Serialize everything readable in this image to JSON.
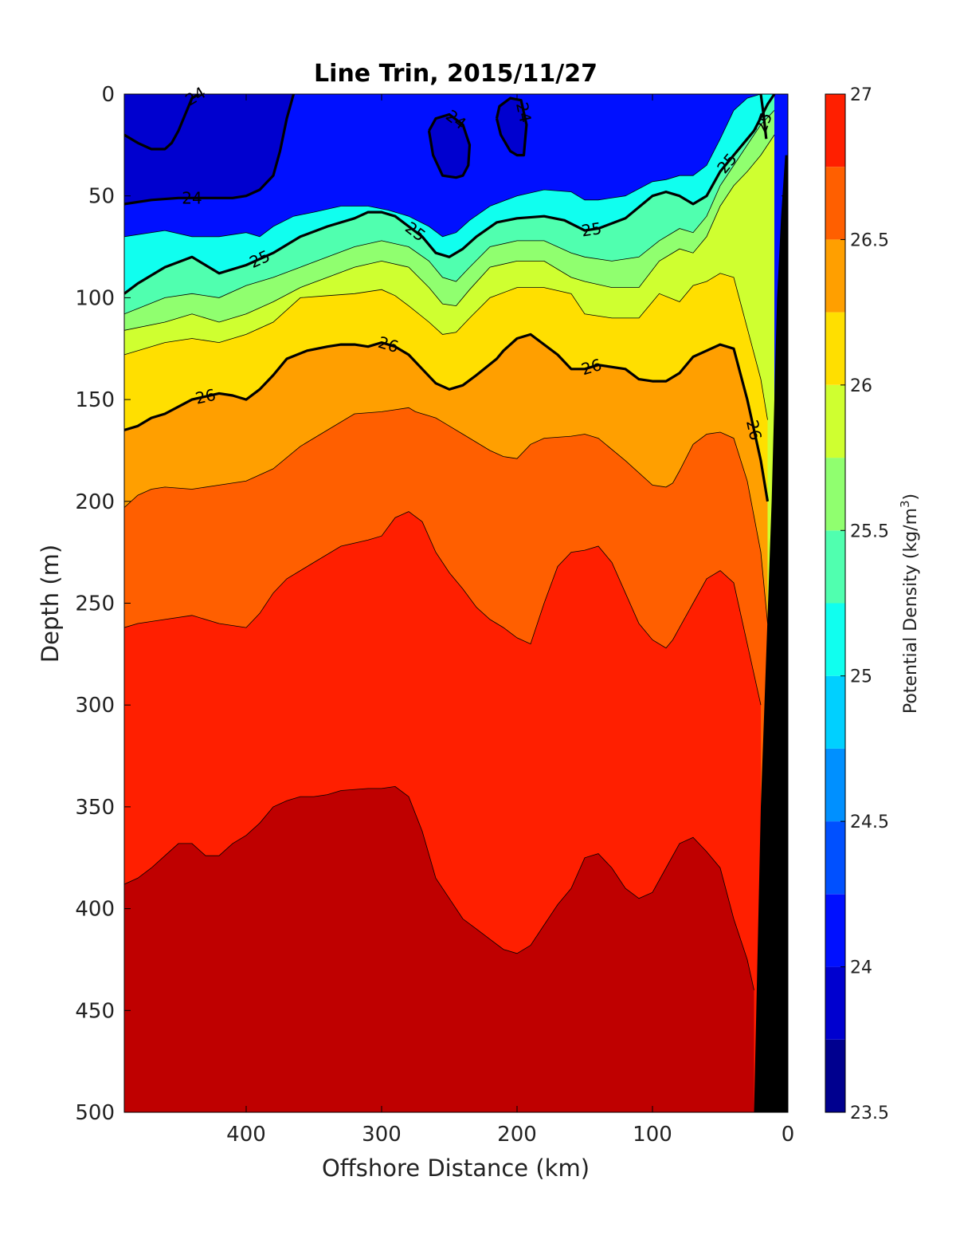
{
  "chart_data": {
    "type": "heatmap",
    "subtype": "filled-contour",
    "title": "Line Trin, 2015/11/27",
    "xlabel": "Offshore Distance (km)",
    "ylabel": "Depth (m)",
    "xlim": [
      490,
      0
    ],
    "ylim": [
      0,
      500
    ],
    "x_reversed": true,
    "y_reversed": true,
    "xticks": [
      400,
      300,
      200,
      100,
      0
    ],
    "yticks": [
      0,
      50,
      100,
      150,
      200,
      250,
      300,
      350,
      400,
      450,
      500
    ],
    "colorbar": {
      "label": "Potential Density (kg/m",
      "label_superscript": "3",
      "label_suffix": ")",
      "range": [
        23.5,
        27
      ],
      "levels": [
        23.5,
        23.75,
        24,
        24.25,
        24.5,
        24.75,
        25,
        25.25,
        25.5,
        25.75,
        26,
        26.25,
        26.5,
        26.75,
        27
      ],
      "ticks": [
        23.5,
        24,
        24.5,
        25,
        25.5,
        26,
        26.5,
        27
      ],
      "tick_labels": [
        "23.5",
        "24",
        "24.5",
        "25",
        "25.5",
        "26",
        "26.5",
        "27"
      ],
      "colors": [
        "#00008f",
        "#0000cf",
        "#0010ff",
        "#0050ff",
        "#0090ff",
        "#00d0ff",
        "#10ffef",
        "#50ffaf",
        "#90ff6f",
        "#cfff30",
        "#ffdf00",
        "#ff9f00",
        "#ff5f00",
        "#ff1f00",
        "#bf0000"
      ]
    },
    "bottom_mask_color": "#000000",
    "isolines": [
      {
        "level": 24.75,
        "x": [
          490,
          460,
          440,
          420,
          400,
          390,
          380,
          365,
          350,
          330,
          310,
          295,
          280,
          265,
          255,
          245,
          235,
          220,
          200,
          180,
          160,
          150,
          140,
          120,
          100,
          90,
          80,
          70,
          60,
          50,
          40,
          30,
          20,
          10
        ],
        "y": [
          70,
          67,
          70,
          70,
          68,
          70,
          65,
          60,
          58,
          55,
          55,
          57,
          60,
          65,
          70,
          68,
          62,
          55,
          50,
          47,
          48,
          52,
          52,
          50,
          43,
          42,
          40,
          40,
          35,
          22,
          8,
          2,
          0,
          0
        ]
      },
      {
        "level": 25.0,
        "x": [
          490,
          480,
          460,
          440,
          420,
          400,
          380,
          360,
          340,
          320,
          310,
          300,
          290,
          280,
          270,
          260,
          250,
          240,
          230,
          215,
          200,
          180,
          165,
          150,
          140,
          120,
          100,
          90,
          80,
          70,
          60,
          50,
          40,
          30,
          25,
          15,
          10
        ],
        "y": [
          98,
          93,
          85,
          80,
          88,
          84,
          78,
          70,
          65,
          61,
          58,
          58,
          60,
          65,
          70,
          78,
          80,
          76,
          70,
          63,
          61,
          60,
          62,
          67,
          66,
          61,
          50,
          48,
          50,
          54,
          50,
          38,
          30,
          22,
          18,
          5,
          0
        ]
      },
      {
        "level": 25.25,
        "x": [
          490,
          460,
          440,
          420,
          400,
          380,
          360,
          340,
          320,
          300,
          280,
          265,
          255,
          245,
          235,
          220,
          200,
          180,
          160,
          150,
          130,
          110,
          95,
          80,
          70,
          60,
          50,
          40,
          30,
          20,
          10
        ],
        "y": [
          108,
          100,
          98,
          100,
          94,
          90,
          85,
          80,
          75,
          72,
          75,
          82,
          90,
          92,
          85,
          75,
          72,
          72,
          78,
          80,
          82,
          80,
          72,
          66,
          68,
          60,
          45,
          35,
          25,
          15,
          8
        ]
      },
      {
        "level": 25.5,
        "x": [
          490,
          460,
          440,
          420,
          400,
          380,
          360,
          340,
          320,
          300,
          280,
          265,
          255,
          245,
          235,
          220,
          200,
          180,
          160,
          150,
          130,
          110,
          95,
          80,
          70,
          60,
          50,
          40,
          30,
          20,
          10
        ],
        "y": [
          116,
          112,
          108,
          112,
          108,
          102,
          95,
          90,
          85,
          82,
          85,
          95,
          103,
          104,
          96,
          85,
          82,
          82,
          90,
          92,
          95,
          95,
          82,
          76,
          78,
          70,
          55,
          45,
          38,
          30,
          20
        ]
      },
      {
        "level": 25.75,
        "x": [
          490,
          460,
          440,
          420,
          400,
          380,
          360,
          340,
          320,
          300,
          290,
          280,
          265,
          255,
          245,
          235,
          220,
          200,
          180,
          160,
          150,
          130,
          110,
          95,
          80,
          70,
          60,
          50,
          40,
          30,
          20,
          15
        ],
        "y": [
          128,
          122,
          120,
          122,
          118,
          112,
          100,
          99,
          98,
          96,
          99,
          104,
          112,
          118,
          117,
          110,
          100,
          95,
          95,
          98,
          108,
          110,
          110,
          98,
          102,
          94,
          92,
          88,
          90,
          115,
          140,
          160
        ]
      },
      {
        "level": 26.0,
        "x": [
          490,
          480,
          470,
          460,
          440,
          420,
          410,
          400,
          390,
          380,
          370,
          355,
          340,
          330,
          320,
          310,
          300,
          290,
          280,
          270,
          260,
          250,
          240,
          230,
          215,
          210,
          200,
          190,
          180,
          170,
          160,
          150,
          140,
          120,
          110,
          100,
          90,
          80,
          70,
          60,
          50,
          40,
          30,
          20,
          15
        ],
        "y": [
          165,
          163,
          159,
          157,
          150,
          147,
          148,
          150,
          145,
          138,
          130,
          126,
          124,
          123,
          123,
          124,
          122,
          124,
          128,
          135,
          142,
          145,
          143,
          138,
          130,
          126,
          120,
          118,
          123,
          128,
          135,
          135,
          133,
          135,
          140,
          141,
          141,
          137,
          129,
          126,
          123,
          125,
          150,
          180,
          200
        ]
      },
      {
        "level": 26.25,
        "x": [
          490,
          480,
          470,
          460,
          440,
          420,
          400,
          380,
          360,
          340,
          320,
          300,
          290,
          280,
          275,
          265,
          260,
          255,
          250,
          240,
          220,
          210,
          200,
          190,
          180,
          160,
          150,
          140,
          120,
          100,
          90,
          85,
          80,
          70,
          60,
          50,
          40,
          30,
          20,
          15
        ],
        "y": [
          203,
          197,
          194,
          193,
          194,
          192,
          190,
          184,
          173,
          165,
          157,
          156,
          155,
          154,
          156,
          158,
          159,
          161,
          163,
          167,
          175,
          178,
          179,
          172,
          169,
          168,
          167,
          169,
          180,
          192,
          193,
          191,
          185,
          172,
          167,
          166,
          169,
          190,
          225,
          260
        ]
      },
      {
        "level": 26.5,
        "x": [
          490,
          480,
          460,
          440,
          420,
          400,
          390,
          380,
          370,
          350,
          330,
          310,
          300,
          290,
          280,
          270,
          260,
          250,
          240,
          230,
          220,
          210,
          200,
          190,
          180,
          170,
          160,
          150,
          140,
          130,
          120,
          110,
          100,
          90,
          85,
          80,
          70,
          60,
          50,
          40,
          30,
          20
        ],
        "y": [
          262,
          260,
          258,
          256,
          260,
          262,
          255,
          245,
          238,
          230,
          222,
          219,
          217,
          208,
          205,
          210,
          225,
          235,
          243,
          252,
          258,
          262,
          267,
          270,
          250,
          232,
          225,
          224,
          222,
          230,
          245,
          260,
          268,
          272,
          268,
          262,
          250,
          238,
          234,
          240,
          270,
          300
        ]
      },
      {
        "level": 26.75,
        "x": [
          490,
          480,
          470,
          460,
          450,
          440,
          430,
          420,
          410,
          400,
          390,
          380,
          370,
          360,
          350,
          340,
          330,
          310,
          300,
          290,
          280,
          270,
          260,
          250,
          240,
          230,
          220,
          210,
          200,
          190,
          180,
          170,
          160,
          150,
          140,
          130,
          120,
          110,
          100,
          90,
          80,
          70,
          60,
          50,
          40,
          30,
          25
        ],
        "y": [
          388,
          385,
          380,
          374,
          368,
          368,
          374,
          374,
          368,
          364,
          358,
          350,
          347,
          345,
          345,
          344,
          342,
          341,
          341,
          340,
          345,
          362,
          385,
          395,
          405,
          410,
          415,
          420,
          422,
          418,
          408,
          398,
          390,
          375,
          373,
          380,
          390,
          395,
          392,
          380,
          368,
          365,
          372,
          380,
          405,
          425,
          440
        ]
      }
    ],
    "bold_contours": [
      {
        "level": 24,
        "label": "24",
        "x": [
          490,
          480,
          470,
          460,
          455,
          450,
          445,
          440,
          435
        ],
        "y": [
          20,
          24,
          27,
          27,
          24,
          18,
          10,
          2,
          0
        ]
      },
      {
        "level": 24,
        "label": "24",
        "x": [
          490,
          470,
          450,
          430,
          410,
          400,
          390,
          380,
          375,
          370,
          365
        ],
        "y": [
          54,
          52,
          51,
          51,
          51,
          50,
          47,
          40,
          28,
          12,
          0
        ]
      },
      {
        "level": 24,
        "label": "24",
        "x": [
          265,
          260,
          250,
          240,
          235,
          236,
          240,
          245,
          255,
          262,
          265
        ],
        "y": [
          18,
          12,
          10,
          15,
          25,
          35,
          40,
          41,
          40,
          30,
          18
        ]
      },
      {
        "level": 24,
        "label": "24",
        "x": [
          215,
          212,
          205,
          200,
          195,
          193,
          197,
          205,
          213,
          215
        ],
        "y": [
          12,
          20,
          28,
          30,
          30,
          15,
          3,
          2,
          6,
          12
        ]
      },
      {
        "level": 24,
        "label": "",
        "x": [
          20,
          18,
          16
        ],
        "y": [
          0,
          10,
          22
        ]
      },
      {
        "level": 25,
        "label": "25",
        "x": [
          490,
          480,
          460,
          440,
          420,
          400,
          380,
          360,
          340,
          320,
          310,
          300,
          290,
          280,
          270,
          260,
          250,
          240,
          230,
          215,
          200,
          180,
          165,
          150,
          140,
          120,
          100,
          90,
          80,
          70,
          60,
          50,
          40,
          30,
          25,
          15,
          10
        ],
        "y": [
          98,
          93,
          85,
          80,
          88,
          84,
          78,
          70,
          65,
          61,
          58,
          58,
          60,
          65,
          70,
          78,
          80,
          76,
          70,
          63,
          61,
          60,
          62,
          67,
          66,
          61,
          50,
          48,
          50,
          54,
          50,
          38,
          30,
          22,
          18,
          5,
          0
        ]
      },
      {
        "level": 26,
        "label": "26",
        "x": [
          490,
          480,
          470,
          460,
          440,
          420,
          410,
          400,
          390,
          380,
          370,
          355,
          340,
          330,
          320,
          310,
          300,
          290,
          280,
          270,
          260,
          250,
          240,
          230,
          215,
          210,
          200,
          190,
          180,
          170,
          160,
          150,
          140,
          120,
          110,
          100,
          90,
          80,
          70,
          60,
          50,
          40,
          30,
          20,
          15
        ],
        "y": [
          165,
          163,
          159,
          157,
          150,
          147,
          148,
          150,
          145,
          138,
          130,
          126,
          124,
          123,
          123,
          124,
          122,
          124,
          128,
          135,
          142,
          145,
          143,
          138,
          130,
          126,
          120,
          118,
          123,
          128,
          135,
          135,
          133,
          135,
          140,
          141,
          141,
          137,
          129,
          126,
          123,
          125,
          150,
          180,
          200
        ]
      }
    ],
    "bathymetry": {
      "x": [
        0,
        25,
        20,
        12,
        8,
        5,
        2,
        0
      ],
      "y": [
        500,
        500,
        350,
        200,
        100,
        60,
        30,
        30
      ]
    }
  }
}
